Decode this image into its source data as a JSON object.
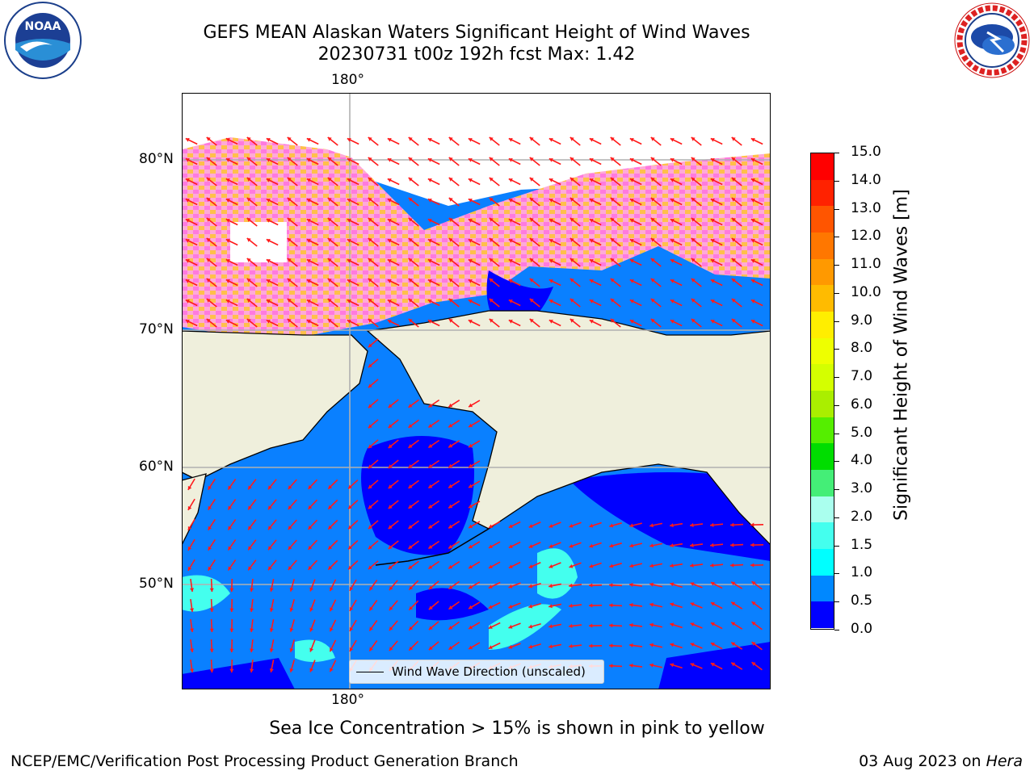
{
  "header": {
    "title_line1": "GEFS MEAN Alaskan Waters Significant Height of Wind Waves",
    "title_line2": "20230731 t00z 192h fcst   Max: 1.42"
  },
  "logos": {
    "left": "NOAA",
    "left_ring": "NATIONAL OCEANIC AND ATMOSPHERIC ADMINISTRATION · U.S. DEPARTMENT OF COMMERCE",
    "right_ring": "NATIONAL WEATHER SERVICE"
  },
  "map": {
    "lon_label_top": "180°",
    "lon_label_bottom": "180°",
    "lat_labels": [
      "80°N",
      "70°N",
      "60°N",
      "50°N"
    ],
    "legend_label": "Wind Wave Direction (unscaled)"
  },
  "colorbar": {
    "label": "Significant Height of Wind Waves [m]",
    "ticks": [
      "15.0",
      "14.0",
      "13.0",
      "12.0",
      "11.0",
      "10.0",
      "9.0",
      "8.0",
      "7.0",
      "6.0",
      "5.0",
      "4.0",
      "3.0",
      "2.0",
      "1.5",
      "1.0",
      "0.5",
      "0.0"
    ],
    "colors": [
      "#ff0000",
      "#ff2200",
      "#ff5500",
      "#ff7700",
      "#ff9900",
      "#ffbb00",
      "#ffee00",
      "#eeff00",
      "#d4ff00",
      "#aaee00",
      "#55ee00",
      "#00dd00",
      "#44ee77",
      "#aaffee",
      "#44ffee",
      "#00ffff",
      "#0088ff",
      "#0000ff"
    ]
  },
  "footer": {
    "note": "Sea Ice Concentration > 15% is shown in pink to yellow",
    "left": "NCEP/EMC/Verification Post Processing Product Generation Branch",
    "date": "03 Aug 2023 on ",
    "host": "Hera"
  }
}
